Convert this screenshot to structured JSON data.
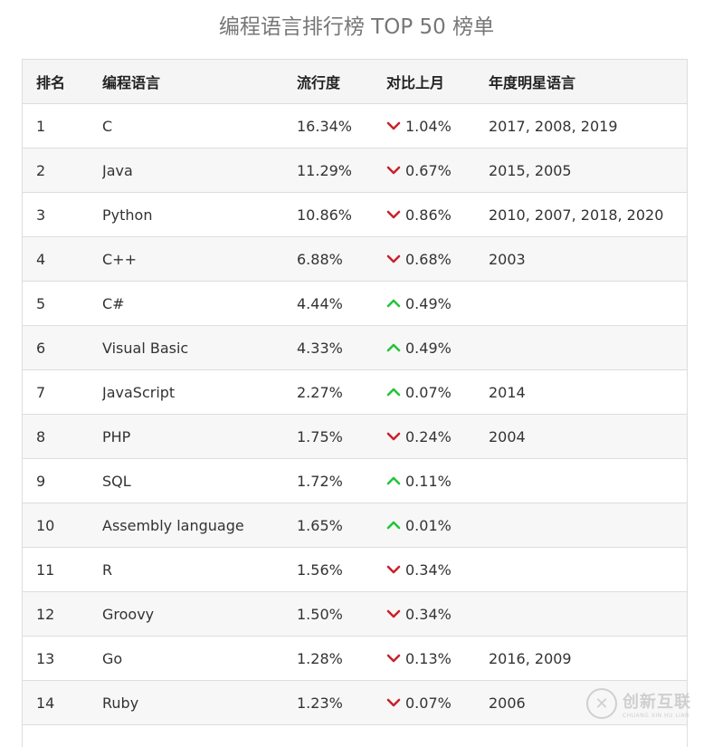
{
  "title": "编程语言排行榜 TOP 50 榜单",
  "table": {
    "headers": [
      "排名",
      "编程语言",
      "流行度",
      "对比上月",
      "年度明星语言"
    ],
    "rows": [
      {
        "rank": "1",
        "lang": "C",
        "pop": "16.34%",
        "dir": "down",
        "chg": "1.04%",
        "star": "2017, 2008, 2019"
      },
      {
        "rank": "2",
        "lang": "Java",
        "pop": "11.29%",
        "dir": "down",
        "chg": "0.67%",
        "star": "2015, 2005"
      },
      {
        "rank": "3",
        "lang": "Python",
        "pop": "10.86%",
        "dir": "down",
        "chg": "0.86%",
        "star": "2010, 2007, 2018, 2020"
      },
      {
        "rank": "4",
        "lang": "C++",
        "pop": "6.88%",
        "dir": "down",
        "chg": "0.68%",
        "star": "2003"
      },
      {
        "rank": "5",
        "lang": "C#",
        "pop": "4.44%",
        "dir": "up",
        "chg": "0.49%",
        "star": ""
      },
      {
        "rank": "6",
        "lang": "Visual Basic",
        "pop": "4.33%",
        "dir": "up",
        "chg": "0.49%",
        "star": ""
      },
      {
        "rank": "7",
        "lang": "JavaScript",
        "pop": "2.27%",
        "dir": "up",
        "chg": "0.07%",
        "star": "2014"
      },
      {
        "rank": "8",
        "lang": "PHP",
        "pop": "1.75%",
        "dir": "down",
        "chg": "0.24%",
        "star": "2004"
      },
      {
        "rank": "9",
        "lang": "SQL",
        "pop": "1.72%",
        "dir": "up",
        "chg": "0.11%",
        "star": ""
      },
      {
        "rank": "10",
        "lang": "Assembly language",
        "pop": "1.65%",
        "dir": "up",
        "chg": "0.01%",
        "star": ""
      },
      {
        "rank": "11",
        "lang": "R",
        "pop": "1.56%",
        "dir": "down",
        "chg": "0.34%",
        "star": ""
      },
      {
        "rank": "12",
        "lang": "Groovy",
        "pop": "1.50%",
        "dir": "down",
        "chg": "0.34%",
        "star": ""
      },
      {
        "rank": "13",
        "lang": "Go",
        "pop": "1.28%",
        "dir": "down",
        "chg": "0.13%",
        "star": "2016, 2009"
      },
      {
        "rank": "14",
        "lang": "Ruby",
        "pop": "1.23%",
        "dir": "down",
        "chg": "0.07%",
        "star": "2006"
      },
      {
        "rank": "",
        "lang": "",
        "pop": "",
        "dir": "",
        "chg": "",
        "star": ""
      }
    ]
  },
  "colors": {
    "up": "#22c53a",
    "down": "#c8232c"
  },
  "icons": {
    "up": "chevron-up-icon",
    "down": "chevron-down-icon"
  },
  "watermark": {
    "logo_glyph": "✕",
    "name": "创新互联",
    "sub": "CHUANG XIN HU LIAN"
  }
}
